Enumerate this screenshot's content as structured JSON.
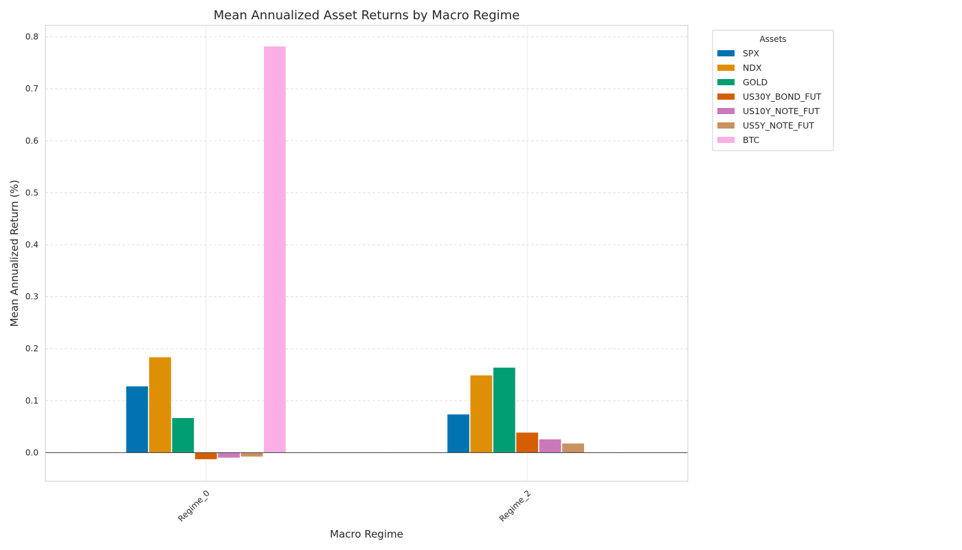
{
  "chart_data": {
    "type": "bar",
    "title": "Mean Annualized Asset Returns by Macro Regime",
    "xlabel": "Macro Regime",
    "ylabel": "Mean Annualized Return (%)",
    "categories": [
      "Regime_0",
      "Regime_2"
    ],
    "ylim": [
      -0.055,
      0.822
    ],
    "yticks": [
      "0.0",
      "0.1",
      "0.2",
      "0.3",
      "0.4",
      "0.5",
      "0.6",
      "0.7",
      "0.8"
    ],
    "grid": true,
    "legend": {
      "title": "Assets",
      "placement": "outside-top-right"
    },
    "series": [
      {
        "name": "SPX",
        "color": "#0173b2",
        "values": [
          0.128,
          0.074
        ]
      },
      {
        "name": "NDX",
        "color": "#de8f05",
        "values": [
          0.184,
          0.149
        ]
      },
      {
        "name": "GOLD",
        "color": "#029e73",
        "values": [
          0.067,
          0.164
        ]
      },
      {
        "name": "US30Y_BOND_FUT",
        "color": "#d55e00",
        "values": [
          -0.013,
          0.039
        ]
      },
      {
        "name": "US10Y_NOTE_FUT",
        "color": "#cc78bc",
        "values": [
          -0.01,
          0.026
        ]
      },
      {
        "name": "US5Y_NOTE_FUT",
        "color": "#ca9161",
        "values": [
          -0.008,
          0.018
        ]
      },
      {
        "name": "BTC",
        "color": "#fbafe4",
        "values": [
          0.782,
          null
        ]
      }
    ]
  }
}
